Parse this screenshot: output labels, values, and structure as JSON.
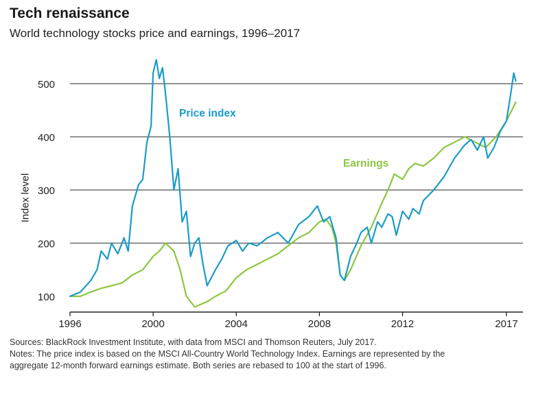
{
  "header": {
    "title": "Tech renaissance",
    "subtitle": "World technology stocks price and earnings, 1996–2017"
  },
  "notes": {
    "source": "Sources: BlackRock Investment Institute, with data from MSCI and Thomson Reuters, July 2017.",
    "line1": "Notes: The price index is based on the MSCI All-Country World Technology Index. Earnings are represented by the",
    "line2": "aggregate 12-month forward earnings estimate. Both series are rebased to 100 at the start of 1996."
  },
  "colors": {
    "price": "#1a9bc8",
    "earnings": "#8cc63f",
    "grid": "#6d6d6d",
    "axis": "#222222"
  },
  "chart_data": {
    "type": "line",
    "title": "Tech renaissance",
    "subtitle": "World technology stocks price and earnings, 1996–2017",
    "xlabel": "",
    "ylabel": "Index level",
    "xlim": [
      1996,
      2017.6
    ],
    "ylim": [
      100,
      550
    ],
    "x_ticks": [
      1996,
      2000,
      2004,
      2008,
      2012,
      2017
    ],
    "y_ticks": [
      100,
      200,
      300,
      400,
      500
    ],
    "grid": "horizontal",
    "series": [
      {
        "name": "Price index",
        "x": [
          1996.0,
          1996.5,
          1997.0,
          1997.3,
          1997.5,
          1997.8,
          1998.0,
          1998.3,
          1998.6,
          1998.8,
          1999.0,
          1999.3,
          1999.5,
          1999.7,
          1999.9,
          2000.0,
          2000.15,
          2000.3,
          2000.45,
          2000.6,
          2000.8,
          2001.0,
          2001.2,
          2001.4,
          2001.6,
          2001.8,
          2002.0,
          2002.2,
          2002.4,
          2002.6,
          2002.8,
          2003.0,
          2003.3,
          2003.6,
          2004.0,
          2004.3,
          2004.6,
          2005.0,
          2005.5,
          2006.0,
          2006.5,
          2007.0,
          2007.5,
          2007.9,
          2008.2,
          2008.5,
          2008.8,
          2009.0,
          2009.2,
          2009.5,
          2009.8,
          2010.0,
          2010.3,
          2010.5,
          2010.8,
          2011.0,
          2011.3,
          2011.5,
          2011.7,
          2012.0,
          2012.3,
          2012.5,
          2012.8,
          2013.0,
          2013.5,
          2014.0,
          2014.5,
          2015.0,
          2015.3,
          2015.6,
          2015.9,
          2016.1,
          2016.4,
          2016.7,
          2017.0,
          2017.2,
          2017.35,
          2017.45
        ],
        "values": [
          100,
          108,
          130,
          150,
          185,
          170,
          200,
          180,
          210,
          185,
          270,
          310,
          320,
          390,
          420,
          520,
          545,
          510,
          530,
          480,
          400,
          300,
          340,
          240,
          260,
          175,
          200,
          210,
          160,
          120,
          135,
          150,
          170,
          195,
          205,
          185,
          200,
          195,
          210,
          220,
          200,
          235,
          250,
          270,
          240,
          250,
          210,
          140,
          130,
          175,
          200,
          220,
          230,
          200,
          240,
          230,
          255,
          250,
          215,
          260,
          245,
          265,
          255,
          280,
          300,
          325,
          360,
          385,
          395,
          375,
          400,
          360,
          380,
          410,
          430,
          480,
          520,
          505
        ]
      },
      {
        "name": "Earnings",
        "x": [
          1996.0,
          1996.5,
          1997.0,
          1997.5,
          1998.0,
          1998.5,
          1999.0,
          1999.5,
          2000.0,
          2000.3,
          2000.6,
          2001.0,
          2001.3,
          2001.6,
          2002.0,
          2002.3,
          2002.6,
          2003.0,
          2003.5,
          2004.0,
          2004.5,
          2005.0,
          2005.5,
          2006.0,
          2006.5,
          2007.0,
          2007.5,
          2008.0,
          2008.3,
          2008.6,
          2008.8,
          2009.0,
          2009.2,
          2009.5,
          2010.0,
          2010.5,
          2011.0,
          2011.3,
          2011.6,
          2012.0,
          2012.3,
          2012.6,
          2013.0,
          2013.5,
          2014.0,
          2014.5,
          2015.0,
          2015.5,
          2016.0,
          2016.5,
          2017.0,
          2017.45
        ],
        "values": [
          100,
          100,
          108,
          115,
          120,
          125,
          140,
          150,
          175,
          185,
          200,
          185,
          150,
          100,
          80,
          85,
          90,
          100,
          110,
          135,
          150,
          160,
          170,
          180,
          195,
          210,
          220,
          240,
          245,
          230,
          200,
          140,
          130,
          150,
          195,
          230,
          275,
          300,
          330,
          320,
          340,
          350,
          345,
          360,
          380,
          390,
          400,
          390,
          380,
          400,
          430,
          465
        ]
      }
    ],
    "annotations": [
      {
        "text": "Price index",
        "series": "Price index"
      },
      {
        "text": "Earnings",
        "series": "Earnings"
      }
    ]
  }
}
